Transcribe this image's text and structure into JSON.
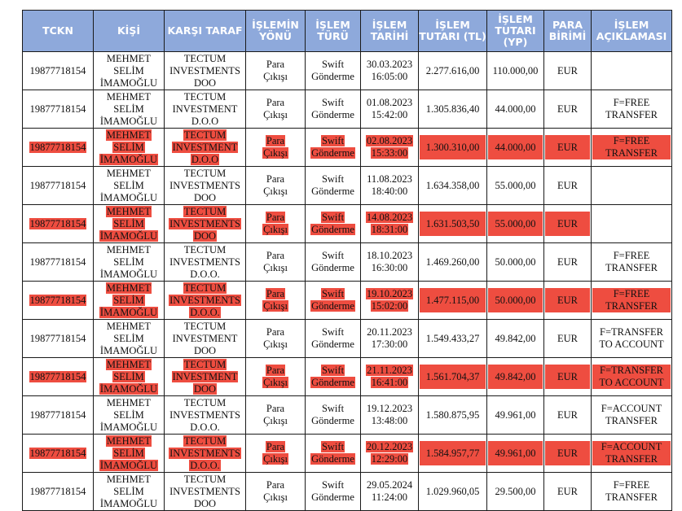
{
  "columns": [
    "TCKN",
    "KİŞİ",
    "KARŞI TARAF",
    "İŞLEMİN YÖNÜ",
    "İŞLEM TÜRÜ",
    "İŞLEM TARİHİ",
    "İŞLEM TUTARI (TL)",
    "İŞLEM TUTARI (YP)",
    "PARA BİRİMİ",
    "İŞLEM AÇIKLAMASI"
  ],
  "highlight_color": "#ee4d40",
  "header_color": "#8ea9db",
  "rows": [
    {
      "highlighted": false,
      "tckn": "19877718154",
      "kisi": [
        "MEHMET",
        "SELİM",
        "İMAMOĞLU"
      ],
      "karsi": [
        "TECTUM",
        "INVESTMENTS",
        "DOO"
      ],
      "yon": [
        "Para",
        "Çıkışı"
      ],
      "tur": [
        "Swift",
        "Gönderme"
      ],
      "tarih": [
        "30.03.2023",
        "16:05:00"
      ],
      "tl": "2.277.616,00",
      "yp": "110.000,00",
      "birim": "EUR",
      "aciklama": []
    },
    {
      "highlighted": false,
      "tckn": "19877718154",
      "kisi": [
        "MEHMET",
        "SELİM",
        "İMAMOĞLU"
      ],
      "karsi": [
        "TECTUM",
        "INVESTMENT",
        "D.O.O"
      ],
      "yon": [
        "Para",
        "Çıkışı"
      ],
      "tur": [
        "Swift",
        "Gönderme"
      ],
      "tarih": [
        "01.08.2023",
        "15:42:00"
      ],
      "tl": "1.305.836,40",
      "yp": "44.000,00",
      "birim": "EUR",
      "aciklama": [
        "F=FREE",
        "TRANSFER"
      ]
    },
    {
      "highlighted": true,
      "tckn": "19877718154",
      "kisi": [
        "MEHMET",
        "SELİM",
        "İMAMOĞLU"
      ],
      "karsi": [
        "TECTUM",
        "INVESTMENT",
        "D.O.O"
      ],
      "yon": [
        "Para",
        "Çıkışı"
      ],
      "tur": [
        "Swift",
        "Gönderme"
      ],
      "tarih": [
        "02.08.2023",
        "15:33:00"
      ],
      "tl": "1.300.310,00",
      "yp": "44.000,00",
      "birim": "EUR",
      "aciklama": [
        "F=FREE",
        "TRANSFER"
      ]
    },
    {
      "highlighted": false,
      "tckn": "19877718154",
      "kisi": [
        "MEHMET",
        "SELİM",
        "İMAMOĞLU"
      ],
      "karsi": [
        "TECTUM",
        "INVESTMENTS",
        "DOO"
      ],
      "yon": [
        "Para",
        "Çıkışı"
      ],
      "tur": [
        "Swift",
        "Gönderme"
      ],
      "tarih": [
        "11.08.2023",
        "18:40:00"
      ],
      "tl": "1.634.358,00",
      "yp": "55.000,00",
      "birim": "EUR",
      "aciklama": []
    },
    {
      "highlighted": true,
      "tckn": "19877718154",
      "kisi": [
        "MEHMET",
        "SELİM",
        "İMAMOĞLU"
      ],
      "karsi": [
        "TECTUM",
        "INVESTMENTS",
        "DOO"
      ],
      "yon": [
        "Para",
        "Çıkışı"
      ],
      "tur": [
        "Swift",
        "Gönderme"
      ],
      "tarih": [
        "14.08.2023",
        "18:31:00"
      ],
      "tl": "1.631.503,50",
      "yp": "55.000,00",
      "birim": "EUR",
      "aciklama": []
    },
    {
      "highlighted": false,
      "tckn": "19877718154",
      "kisi": [
        "MEHMET",
        "SELİM",
        "İMAMOĞLU"
      ],
      "karsi": [
        "TECTUM",
        "INVESTMENTS",
        "D.O.O."
      ],
      "yon": [
        "Para",
        "Çıkışı"
      ],
      "tur": [
        "Swift",
        "Gönderme"
      ],
      "tarih": [
        "18.10.2023",
        "16:30:00"
      ],
      "tl": "1.469.260,00",
      "yp": "50.000,00",
      "birim": "EUR",
      "aciklama": [
        "F=FREE",
        "TRANSFER"
      ]
    },
    {
      "highlighted": true,
      "tckn": "19877718154",
      "kisi": [
        "MEHMET",
        "SELİM",
        "İMAMOĞLU"
      ],
      "karsi": [
        "TECTUM",
        "INVESTMENTS",
        "D.O.O."
      ],
      "yon": [
        "Para",
        "Çıkışı"
      ],
      "tur": [
        "Swift",
        "Gönderme"
      ],
      "tarih": [
        "19.10.2023",
        "15:02:00"
      ],
      "tl": "1.477.115,00",
      "yp": "50.000,00",
      "birim": "EUR",
      "aciklama": [
        "F=FREE",
        "TRANSFER"
      ]
    },
    {
      "highlighted": false,
      "tckn": "19877718154",
      "kisi": [
        "MEHMET",
        "SELİM",
        "İMAMOĞLU"
      ],
      "karsi": [
        "TECTUM",
        "INVESTMENT",
        "DOO"
      ],
      "yon": [
        "Para",
        "Çıkışı"
      ],
      "tur": [
        "Swift",
        "Gönderme"
      ],
      "tarih": [
        "20.11.2023",
        "17:30:00"
      ],
      "tl": "1.549.433,27",
      "yp": "49.842,00",
      "birim": "EUR",
      "aciklama": [
        "F=TRANSFER",
        "TO ACCOUNT"
      ]
    },
    {
      "highlighted": true,
      "tckn": "19877718154",
      "kisi": [
        "MEHMET",
        "SELİM",
        "İMAMOĞLU"
      ],
      "karsi": [
        "TECTUM",
        "INVESTMENT",
        "DOO"
      ],
      "yon": [
        "Para",
        "Çıkışı"
      ],
      "tur": [
        "Swift",
        "Gönderme"
      ],
      "tarih": [
        "21.11.2023",
        "16:41:00"
      ],
      "tl": "1.561.704,37",
      "yp": "49.842,00",
      "birim": "EUR",
      "aciklama": [
        "F=TRANSFER",
        "TO ACCOUNT"
      ]
    },
    {
      "highlighted": false,
      "tckn": "19877718154",
      "kisi": [
        "MEHMET",
        "SELİM",
        "İMAMOĞLU"
      ],
      "karsi": [
        "TECTUM",
        "INVESTMENTS",
        "D.O.O."
      ],
      "yon": [
        "Para",
        "Çıkışı"
      ],
      "tur": [
        "Swift",
        "Gönderme"
      ],
      "tarih": [
        "19.12.2023",
        "13:48:00"
      ],
      "tl": "1.580.875,95",
      "yp": "49.961,00",
      "birim": "EUR",
      "aciklama": [
        "F=ACCOUNT",
        "TRANSFER"
      ]
    },
    {
      "highlighted": true,
      "tckn": "19877718154",
      "kisi": [
        "MEHMET",
        "SELİM",
        "İMAMOĞLU"
      ],
      "karsi": [
        "TECTUM",
        "INVESTMENTS",
        "D.O.O."
      ],
      "yon": [
        "Para",
        "Çıkışı"
      ],
      "tur": [
        "Swift",
        "Gönderme"
      ],
      "tarih": [
        "20.12.2023",
        "12:29:00"
      ],
      "tl": "1.584.957,77",
      "yp": "49.961,00",
      "birim": "EUR",
      "aciklama": [
        "F=ACCOUNT",
        "TRANSFER"
      ]
    },
    {
      "highlighted": false,
      "tckn": "19877718154",
      "kisi": [
        "MEHMET",
        "SELİM",
        "İMAMOĞLU"
      ],
      "karsi": [
        "TECTUM",
        "INVESTMENTS",
        "DOO"
      ],
      "yon": [
        "Para",
        "Çıkışı"
      ],
      "tur": [
        "Swift",
        "Gönderme"
      ],
      "tarih": [
        "29.05.2024",
        "11:24:00"
      ],
      "tl": "1.029.960,05",
      "yp": "29.500,00",
      "birim": "EUR",
      "aciklama": [
        "F=FREE",
        "TRANSFER"
      ]
    }
  ]
}
